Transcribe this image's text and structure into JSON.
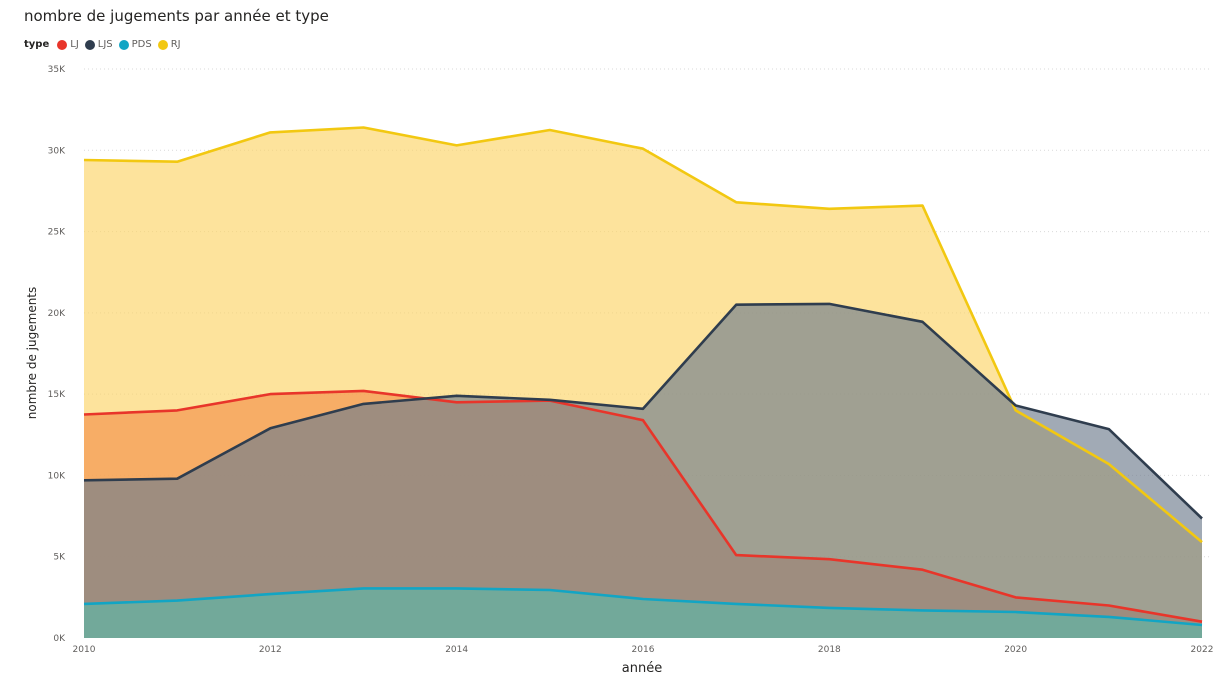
{
  "chart_data": {
    "type": "area",
    "title": "nombre de jugements par année et type",
    "xlabel": "année",
    "ylabel": "nombre de jugements",
    "legend_title": "type",
    "legend_position": "top-left",
    "grid": true,
    "ylim": [
      0,
      35000
    ],
    "xlim": [
      2010,
      2022
    ],
    "x_ticks": [
      "2010",
      "2012",
      "2014",
      "2016",
      "2018",
      "2020",
      "2022"
    ],
    "y_ticks": [
      "0K",
      "5K",
      "10K",
      "15K",
      "20K",
      "25K",
      "30K",
      "35K"
    ],
    "x": [
      2010,
      2011,
      2012,
      2013,
      2014,
      2015,
      2016,
      2017,
      2018,
      2019,
      2020,
      2021,
      2022
    ],
    "series": [
      {
        "name": "RJ",
        "color": "#F2C811",
        "fill": "#FCD467",
        "values": [
          29400,
          29300,
          31100,
          31400,
          30300,
          31250,
          30100,
          26800,
          26400,
          26600,
          14000,
          10700,
          5900
        ]
      },
      {
        "name": "LJ",
        "color": "#E8352A",
        "fill": "#F5914A",
        "values": [
          13750,
          14000,
          15000,
          15200,
          14500,
          14600,
          13400,
          5100,
          4850,
          4200,
          2500,
          2000,
          1000
        ]
      },
      {
        "name": "LJS",
        "color": "#2F3D4E",
        "fill": "#6E7C8E",
        "values": [
          9700,
          9800,
          12900,
          14400,
          14900,
          14650,
          14100,
          20500,
          20550,
          19450,
          14300,
          12850,
          7350
        ]
      },
      {
        "name": "PDS",
        "color": "#12A5C4",
        "fill": "#5AB8A9",
        "values": [
          2100,
          2300,
          2700,
          3050,
          3050,
          2950,
          2400,
          2100,
          1850,
          1700,
          1600,
          1300,
          800
        ]
      }
    ]
  }
}
